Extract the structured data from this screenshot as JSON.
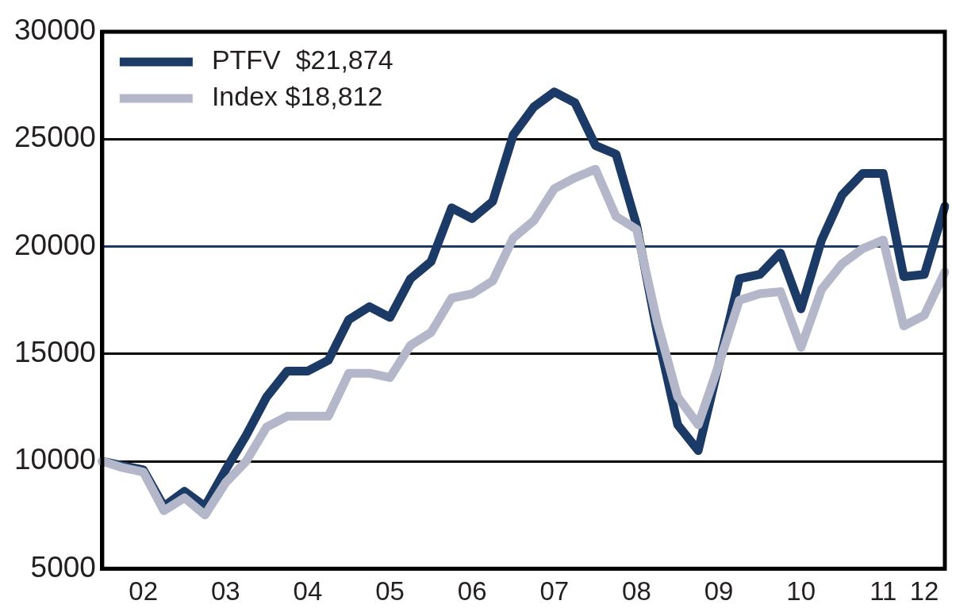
{
  "chart_data": {
    "type": "line",
    "categories": [
      null,
      null,
      "02",
      null,
      null,
      null,
      "03",
      null,
      null,
      null,
      "04",
      null,
      null,
      null,
      "05",
      null,
      null,
      null,
      "06",
      null,
      null,
      null,
      "07",
      null,
      null,
      null,
      "08",
      null,
      null,
      null,
      "09",
      null,
      null,
      null,
      "10",
      null,
      null,
      null,
      "11",
      null,
      "12",
      null
    ],
    "series": [
      {
        "name": "PTFV  $21,874",
        "color": "#1c3a66",
        "values": [
          10000,
          9800,
          9600,
          7900,
          8600,
          7900,
          9600,
          11200,
          13000,
          14200,
          14200,
          14700,
          16600,
          17200,
          16700,
          18500,
          19300,
          21800,
          21300,
          22100,
          25200,
          26500,
          27200,
          26700,
          24700,
          24300,
          21000,
          16000,
          11700,
          10500,
          14500,
          18500,
          18700,
          19700,
          17100,
          20300,
          22400,
          23400,
          23400,
          18600,
          18700,
          21874
        ]
      },
      {
        "name": "Index $18,812",
        "color": "#b4b7c9",
        "values": [
          10000,
          9700,
          9500,
          7700,
          8300,
          7500,
          9000,
          10000,
          11600,
          12100,
          12100,
          12100,
          14100,
          14100,
          13900,
          15400,
          16000,
          17600,
          17800,
          18400,
          20400,
          21200,
          22700,
          23200,
          23600,
          21400,
          20800,
          16500,
          13000,
          11700,
          14500,
          17500,
          17800,
          17900,
          15300,
          18000,
          19200,
          19900,
          20300,
          16300,
          16800,
          18812
        ]
      }
    ],
    "ylim": [
      5000,
      30000
    ],
    "yticks": [
      5000,
      10000,
      15000,
      20000,
      25000,
      30000
    ],
    "grid": true,
    "legend": "upper left"
  }
}
